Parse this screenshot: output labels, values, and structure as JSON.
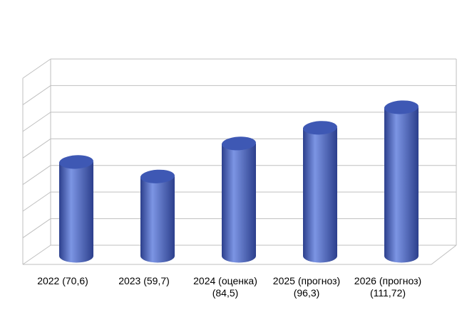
{
  "chart_data": {
    "type": "bar",
    "style": "3d-cylinder",
    "categories": [
      [
        "2022 (70,6)"
      ],
      [
        "2023 (59,7)"
      ],
      [
        "2024 (оценка)",
        "(84,5)"
      ],
      [
        "2025 (прогноз)",
        "(96,3)"
      ],
      [
        "2026 (прогноз)",
        "(111,72)"
      ]
    ],
    "values": [
      70.6,
      59.7,
      84.5,
      96.3,
      111.72
    ],
    "ylim": [
      0,
      140
    ],
    "y_gridlines": [
      0,
      20,
      40,
      60,
      80,
      100,
      120,
      140
    ],
    "grid": true,
    "y_tick_labels_shown": false,
    "colors": {
      "bar": "#4A66C6",
      "bar_dark": "#2C3F8C",
      "bar_light": "#7C95E4",
      "top": "#3E58B4",
      "grid": "#BFBFBF"
    }
  }
}
